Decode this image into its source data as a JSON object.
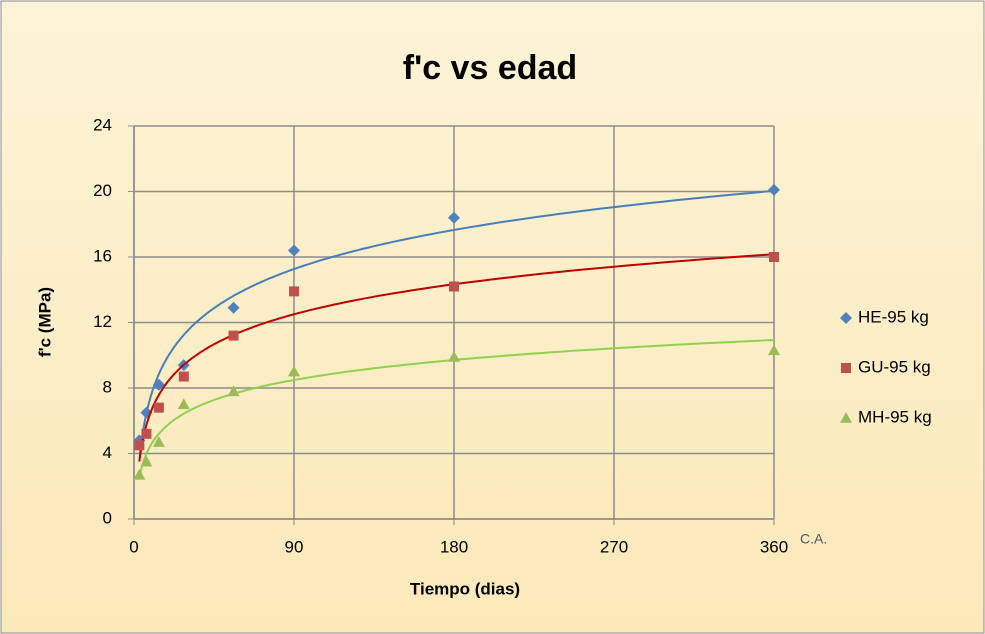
{
  "chart_data": {
    "type": "scatter",
    "title": "f'c vs edad",
    "xlabel": "Tiempo (dias)",
    "ylabel": "f'c (MPa)",
    "annotation": "C.A.",
    "xlim": [
      0,
      360
    ],
    "xticks": [
      0,
      90,
      180,
      270,
      360
    ],
    "ylim": [
      0,
      24
    ],
    "yticks": [
      0,
      4,
      8,
      12,
      16,
      20,
      24
    ],
    "grid": true,
    "legend": "right",
    "trendline": "logarithmic",
    "x": [
      3,
      7,
      14,
      28,
      56,
      90,
      180,
      360
    ],
    "series": [
      {
        "name": "HE-95 kg",
        "color": "#4f81bd",
        "trend_color": "#4a7ebb",
        "marker": "diamond",
        "values": [
          4.8,
          6.5,
          8.2,
          9.4,
          12.9,
          16.4,
          18.4,
          20.1
        ]
      },
      {
        "name": "GU-95 kg",
        "color": "#c0504d",
        "trend_color": "#c00000",
        "marker": "square",
        "values": [
          4.5,
          5.2,
          6.8,
          8.7,
          11.2,
          13.9,
          14.2,
          16.0
        ]
      },
      {
        "name": "MH-95 kg",
        "color": "#9bbb59",
        "trend_color": "#92d050",
        "marker": "triangle",
        "values": [
          2.7,
          3.5,
          4.7,
          7.0,
          7.8,
          9.0,
          9.9,
          10.3
        ]
      }
    ]
  }
}
